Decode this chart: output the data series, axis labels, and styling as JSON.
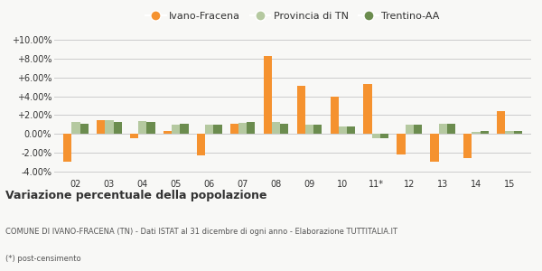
{
  "categories": [
    "02",
    "03",
    "04",
    "05",
    "06",
    "07",
    "08",
    "09",
    "10",
    "11*",
    "12",
    "13",
    "14",
    "15"
  ],
  "ivano": [
    -3.0,
    1.5,
    -0.5,
    0.3,
    -2.3,
    1.1,
    8.3,
    5.1,
    4.0,
    5.3,
    -2.2,
    -3.0,
    -2.6,
    2.4
  ],
  "provincia": [
    1.3,
    1.5,
    1.4,
    1.0,
    1.0,
    1.2,
    1.3,
    1.0,
    0.8,
    -0.5,
    1.0,
    1.1,
    0.2,
    0.3
  ],
  "trentino": [
    1.1,
    1.3,
    1.3,
    1.1,
    1.0,
    1.3,
    1.1,
    1.0,
    0.8,
    -0.5,
    1.0,
    1.1,
    0.3,
    0.3
  ],
  "color_ivano": "#f5922f",
  "color_provincia": "#b5c9a0",
  "color_trentino": "#6b8c4e",
  "ylim_min": -4.5,
  "ylim_max": 10.5,
  "yticks": [
    -4.0,
    -2.0,
    0.0,
    2.0,
    4.0,
    6.0,
    8.0,
    10.0
  ],
  "ytick_labels": [
    "-4.00%",
    "-2.00%",
    "0.00%",
    "+2.00%",
    "+4.00%",
    "+6.00%",
    "+8.00%",
    "+10.00%"
  ],
  "title": "Variazione percentuale della popolazione",
  "subtitle": "COMUNE DI IVANO-FRACENA (TN) - Dati ISTAT al 31 dicembre di ogni anno - Elaborazione TUTTITALIA.IT",
  "footnote": "(*) post-censimento",
  "legend_labels": [
    "Ivano-Fracena",
    "Provincia di TN",
    "Trentino-AA"
  ],
  "bar_width": 0.25,
  "bg_color": "#f8f8f6",
  "grid_color": "#cccccc",
  "text_color": "#333333"
}
